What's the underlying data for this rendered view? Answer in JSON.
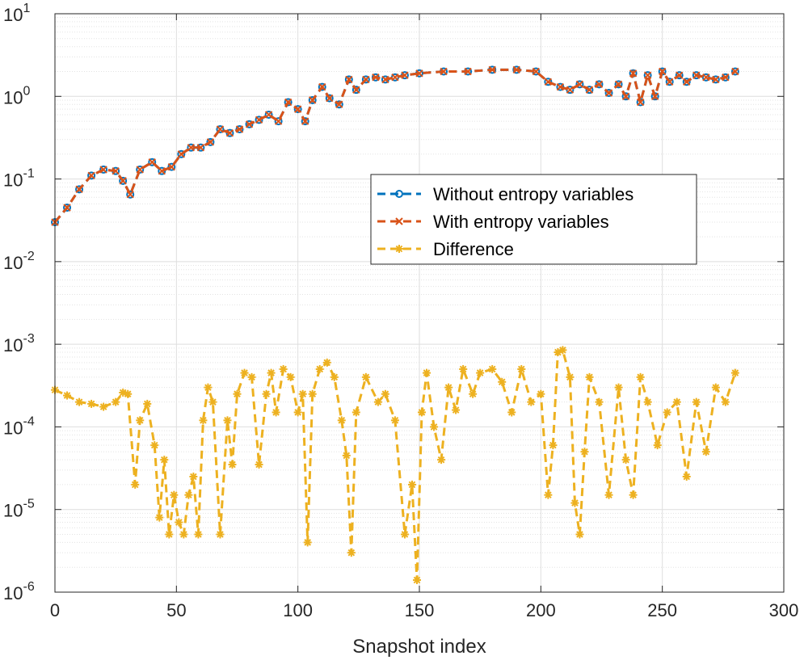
{
  "chart_data": {
    "type": "line",
    "xlabel": "Snapshot index",
    "ylabel": "",
    "title": "",
    "y_scale": "log",
    "xlim": [
      0,
      300
    ],
    "ylim": [
      1e-06,
      10
    ],
    "x_ticks": [
      0,
      50,
      100,
      150,
      200,
      250,
      300
    ],
    "y_ticks": [
      {
        "value": 1e-06,
        "base": "10",
        "exp": "-6"
      },
      {
        "value": 1e-05,
        "base": "10",
        "exp": "-5"
      },
      {
        "value": 0.0001,
        "base": "10",
        "exp": "-4"
      },
      {
        "value": 0.001,
        "base": "10",
        "exp": "-3"
      },
      {
        "value": 0.01,
        "base": "10",
        "exp": "-2"
      },
      {
        "value": 0.1,
        "base": "10",
        "exp": "-1"
      },
      {
        "value": 1,
        "base": "10",
        "exp": "0"
      },
      {
        "value": 10,
        "base": "10",
        "exp": "1"
      }
    ],
    "grid": true,
    "minor_grid": true,
    "legend_position": "center-right",
    "series": [
      {
        "name": "Without entropy variables",
        "color": "#0072BD",
        "marker": "circle",
        "x": [
          0,
          5,
          10,
          15,
          20,
          25,
          28,
          31,
          35,
          40,
          44,
          48,
          52,
          56,
          60,
          64,
          68,
          72,
          76,
          80,
          84,
          88,
          92,
          96,
          100,
          103,
          106,
          110,
          113,
          117,
          121,
          124,
          128,
          132,
          136,
          140,
          144,
          150,
          160,
          170,
          180,
          190,
          198,
          203,
          208,
          212,
          216,
          220,
          224,
          228,
          232,
          235,
          238,
          241,
          244,
          247,
          250,
          253,
          257,
          260,
          264,
          268,
          272,
          276,
          280
        ],
        "values": [
          0.03,
          0.045,
          0.075,
          0.11,
          0.13,
          0.125,
          0.095,
          0.065,
          0.13,
          0.16,
          0.125,
          0.14,
          0.2,
          0.24,
          0.24,
          0.28,
          0.4,
          0.36,
          0.4,
          0.46,
          0.52,
          0.6,
          0.5,
          0.85,
          0.7,
          0.5,
          0.9,
          1.3,
          0.95,
          0.8,
          1.6,
          1.2,
          1.6,
          1.7,
          1.6,
          1.7,
          1.8,
          1.9,
          2.0,
          2.0,
          2.1,
          2.1,
          2.0,
          1.5,
          1.3,
          1.2,
          1.4,
          1.2,
          1.4,
          1.1,
          1.4,
          1.0,
          1.9,
          0.85,
          1.8,
          1.0,
          2.0,
          1.5,
          1.8,
          1.5,
          1.8,
          1.7,
          1.6,
          1.7,
          2.0
        ]
      },
      {
        "name": "With entropy variables",
        "color": "#D95319",
        "marker": "x",
        "x": [
          0,
          5,
          10,
          15,
          20,
          25,
          28,
          31,
          35,
          40,
          44,
          48,
          52,
          56,
          60,
          64,
          68,
          72,
          76,
          80,
          84,
          88,
          92,
          96,
          100,
          103,
          106,
          110,
          113,
          117,
          121,
          124,
          128,
          132,
          136,
          140,
          144,
          150,
          160,
          170,
          180,
          190,
          198,
          203,
          208,
          212,
          216,
          220,
          224,
          228,
          232,
          235,
          238,
          241,
          244,
          247,
          250,
          253,
          257,
          260,
          264,
          268,
          272,
          276,
          280
        ],
        "values": [
          0.03,
          0.045,
          0.075,
          0.11,
          0.13,
          0.125,
          0.095,
          0.065,
          0.13,
          0.16,
          0.125,
          0.14,
          0.2,
          0.24,
          0.24,
          0.28,
          0.4,
          0.36,
          0.4,
          0.46,
          0.52,
          0.6,
          0.5,
          0.85,
          0.7,
          0.5,
          0.9,
          1.3,
          0.95,
          0.8,
          1.6,
          1.2,
          1.6,
          1.7,
          1.6,
          1.7,
          1.8,
          1.9,
          2.0,
          2.0,
          2.1,
          2.1,
          2.0,
          1.5,
          1.3,
          1.2,
          1.4,
          1.2,
          1.4,
          1.1,
          1.4,
          1.0,
          1.9,
          0.85,
          1.8,
          1.0,
          2.0,
          1.5,
          1.8,
          1.5,
          1.8,
          1.7,
          1.6,
          1.7,
          2.0
        ]
      },
      {
        "name": "Difference",
        "color": "#EDB120",
        "marker": "asterisk",
        "x": [
          0,
          5,
          10,
          15,
          20,
          25,
          28,
          30,
          33,
          35,
          38,
          41,
          43,
          45,
          47,
          49,
          51,
          53,
          55,
          57,
          59,
          61,
          63,
          65,
          68,
          71,
          73,
          75,
          78,
          81,
          84,
          87,
          89,
          91,
          94,
          97,
          100,
          102,
          104,
          106,
          109,
          112,
          115,
          118,
          120,
          122,
          124,
          128,
          133,
          136,
          140,
          144,
          147,
          149,
          151,
          153,
          156,
          159,
          162,
          165,
          168,
          172,
          175,
          180,
          184,
          188,
          192,
          196,
          200,
          203,
          205,
          207,
          209,
          212,
          214,
          216,
          218,
          220,
          224,
          228,
          232,
          235,
          238,
          241,
          244,
          248,
          252,
          256,
          260,
          264,
          268,
          272,
          276,
          280
        ],
        "values": [
          0.00028,
          0.00024,
          0.0002,
          0.00019,
          0.000175,
          0.0002,
          0.00026,
          0.00025,
          2e-05,
          0.00012,
          0.00019,
          6e-05,
          8e-06,
          4e-05,
          5e-06,
          1.5e-05,
          7e-06,
          5e-06,
          1.5e-05,
          2.5e-05,
          5e-06,
          0.00012,
          0.0003,
          0.0002,
          5e-06,
          0.00012,
          3.5e-05,
          0.00025,
          0.00045,
          0.0004,
          3.5e-05,
          0.00025,
          0.00045,
          0.00015,
          0.0005,
          0.0004,
          0.00015,
          0.00025,
          4e-06,
          0.00025,
          0.0005,
          0.0006,
          0.0004,
          0.00012,
          4.5e-05,
          3e-06,
          0.00015,
          0.0004,
          0.0002,
          0.00025,
          0.00012,
          5e-06,
          2e-05,
          1.4e-06,
          0.00015,
          0.00045,
          0.0001,
          4e-05,
          0.0003,
          0.00016,
          0.0005,
          0.00025,
          0.00045,
          0.0005,
          0.00035,
          0.00015,
          0.0005,
          0.0002,
          0.00025,
          1.5e-05,
          6e-05,
          0.0008,
          0.00085,
          0.0004,
          1.2e-05,
          5e-06,
          5e-05,
          0.0004,
          0.0002,
          1.5e-05,
          0.0003,
          4e-05,
          1.5e-05,
          0.0004,
          0.0002,
          6e-05,
          0.00015,
          0.0002,
          2.5e-05,
          0.0002,
          5e-05,
          0.0003,
          0.0002,
          0.00045
        ]
      }
    ]
  }
}
